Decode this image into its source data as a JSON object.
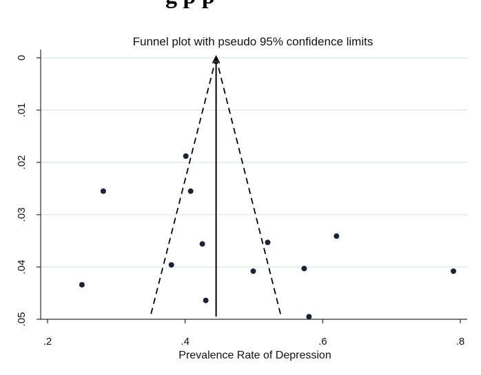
{
  "page": {
    "header_fragment": "g    p    p"
  },
  "chart_data": {
    "type": "scatter",
    "title": "Funnel plot with pseudo 95% confidence limits",
    "xlabel": "Prevalence Rate of Depression",
    "ylabel": "",
    "xlim": [
      0.2,
      0.8
    ],
    "ylim": [
      0,
      0.05
    ],
    "y_reversed": true,
    "x_ticks": [
      ".2",
      ".4",
      ".6",
      ".8"
    ],
    "x_tick_values": [
      0.2,
      0.4,
      0.6,
      0.8
    ],
    "y_ticks": [
      "0",
      ".01",
      ".02",
      ".03",
      ".04",
      ".05"
    ],
    "y_tick_values": [
      0,
      0.01,
      0.02,
      0.03,
      0.04,
      0.05
    ],
    "grid": true,
    "pooled_estimate": 0.445,
    "funnel": {
      "apex": [
        0.445,
        0
      ],
      "lower_left": [
        0.35,
        0.0492
      ],
      "lower_right": [
        0.539,
        0.0492
      ]
    },
    "series": [
      {
        "points": [
          {
            "x": 0.401,
            "y": 0.0188
          },
          {
            "x": 0.281,
            "y": 0.0255
          },
          {
            "x": 0.408,
            "y": 0.0255
          },
          {
            "x": 0.425,
            "y": 0.0356
          },
          {
            "x": 0.52,
            "y": 0.0353
          },
          {
            "x": 0.62,
            "y": 0.0341
          },
          {
            "x": 0.38,
            "y": 0.0396
          },
          {
            "x": 0.499,
            "y": 0.0408
          },
          {
            "x": 0.573,
            "y": 0.0403
          },
          {
            "x": 0.79,
            "y": 0.0408
          },
          {
            "x": 0.25,
            "y": 0.0434
          },
          {
            "x": 0.43,
            "y": 0.0464
          },
          {
            "x": 0.58,
            "y": 0.0495
          }
        ]
      }
    ],
    "colors": {
      "grid": "#dde6e9",
      "axis": "#000000",
      "point": "#1a2233"
    }
  }
}
